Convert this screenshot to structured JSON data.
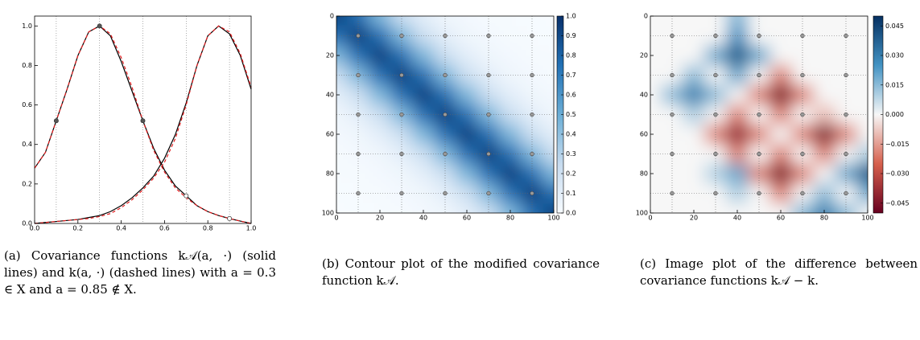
{
  "chart_data": [
    {
      "type": "line",
      "caption": "(a) Covariance functions k𝒜(a, ·) (solid lines) and k(a, ·) (dashed lines) with a = 0.3 ∈ X and a = 0.85 ∉ X.",
      "x": [
        0,
        0.05,
        0.1,
        0.15,
        0.2,
        0.25,
        0.3,
        0.35,
        0.4,
        0.45,
        0.5,
        0.55,
        0.6,
        0.65,
        0.7,
        0.75,
        0.8,
        0.85,
        0.9,
        0.95,
        1
      ],
      "series": [
        {
          "color": "#000000",
          "dash": false,
          "values": [
            0.28,
            0.36,
            0.52,
            0.68,
            0.85,
            0.97,
            1.0,
            0.95,
            0.82,
            0.67,
            0.52,
            0.38,
            0.27,
            0.19,
            0.14,
            0.09,
            0.06,
            0.04,
            0.025,
            0.012,
            0.0
          ]
        },
        {
          "color": "#e41a1c",
          "dash": true,
          "values": [
            0.28,
            0.36,
            0.52,
            0.68,
            0.85,
            0.97,
            1.0,
            0.96,
            0.84,
            0.69,
            0.52,
            0.37,
            0.26,
            0.18,
            0.13,
            0.09,
            0.06,
            0.04,
            0.025,
            0.012,
            0.0
          ]
        },
        {
          "color": "#000000",
          "dash": false,
          "values": [
            0.0,
            0.005,
            0.01,
            0.015,
            0.02,
            0.03,
            0.04,
            0.06,
            0.09,
            0.13,
            0.18,
            0.24,
            0.33,
            0.45,
            0.61,
            0.8,
            0.95,
            1.0,
            0.96,
            0.85,
            0.68
          ]
        },
        {
          "color": "#e41a1c",
          "dash": true,
          "values": [
            0.0,
            0.005,
            0.01,
            0.015,
            0.02,
            0.025,
            0.035,
            0.05,
            0.08,
            0.12,
            0.17,
            0.23,
            0.31,
            0.43,
            0.6,
            0.8,
            0.95,
            1.0,
            0.97,
            0.86,
            0.69
          ]
        }
      ],
      "points": {
        "x": [
          0.1,
          0.3,
          0.5,
          0.7,
          0.9
        ],
        "values": [
          0.52,
          1.0,
          0.52,
          0.14,
          0.025
        ],
        "colors": [
          "#555555",
          "#555555",
          "#555555",
          "#ffffff",
          "#ffffff"
        ]
      },
      "xlim": [
        0,
        1
      ],
      "ylim": [
        0,
        1.05
      ],
      "xticks": [
        {
          "value": 0,
          "label": "0.0"
        },
        0.2,
        0.4,
        0.6,
        0.8,
        {
          "value": 1,
          "label": "1.0"
        }
      ],
      "yticks": [
        {
          "value": 0,
          "label": "0.0"
        },
        0.2,
        0.4,
        0.6,
        0.8,
        {
          "value": 1,
          "label": "1.0"
        }
      ],
      "grid": true
    },
    {
      "type": "heatmap",
      "caption": "(b) Contour plot of the modified covariance function k𝒜.",
      "x": [
        0,
        10,
        20,
        30,
        40,
        50,
        60,
        70,
        80,
        90,
        100
      ],
      "y": [
        0,
        10,
        20,
        30,
        40,
        50,
        60,
        70,
        80,
        90,
        100
      ],
      "values": [
        [
          0.95,
          0.75,
          0.45,
          0.22,
          0.1,
          0.04,
          0.02,
          0.01,
          0.01,
          0,
          0
        ],
        [
          0.75,
          0.95,
          0.75,
          0.45,
          0.22,
          0.1,
          0.04,
          0.02,
          0.01,
          0.01,
          0
        ],
        [
          0.45,
          0.75,
          0.95,
          0.75,
          0.45,
          0.22,
          0.1,
          0.04,
          0.02,
          0.01,
          0.01
        ],
        [
          0.22,
          0.45,
          0.75,
          0.95,
          0.75,
          0.45,
          0.22,
          0.1,
          0.04,
          0.02,
          0.01
        ],
        [
          0.1,
          0.22,
          0.45,
          0.75,
          0.95,
          0.75,
          0.45,
          0.22,
          0.1,
          0.04,
          0.02
        ],
        [
          0.04,
          0.1,
          0.22,
          0.45,
          0.75,
          0.95,
          0.75,
          0.45,
          0.22,
          0.1,
          0.04
        ],
        [
          0.02,
          0.04,
          0.1,
          0.22,
          0.45,
          0.75,
          0.95,
          0.75,
          0.45,
          0.22,
          0.1
        ],
        [
          0.01,
          0.02,
          0.04,
          0.1,
          0.22,
          0.45,
          0.75,
          0.95,
          0.75,
          0.45,
          0.22
        ],
        [
          0.01,
          0.01,
          0.02,
          0.04,
          0.1,
          0.22,
          0.45,
          0.75,
          0.95,
          0.75,
          0.45
        ],
        [
          0,
          0.01,
          0.01,
          0.02,
          0.04,
          0.1,
          0.22,
          0.45,
          0.75,
          0.95,
          0.75
        ],
        [
          0,
          0,
          0.01,
          0.01,
          0.02,
          0.04,
          0.1,
          0.22,
          0.45,
          0.75,
          0.95
        ]
      ],
      "clim": [
        0,
        1
      ],
      "colormap": [
        "#f7fbff",
        "#c6dbef",
        "#6baed6",
        "#2171b5",
        "#08306b"
      ],
      "xlim": [
        0,
        100
      ],
      "ylim": [
        100,
        0
      ],
      "xticks": [
        0,
        20,
        40,
        60,
        80,
        100
      ],
      "yticks": [
        0,
        20,
        40,
        60,
        80,
        100
      ],
      "cticks": [
        {
          "value": 0,
          "label": "0.0"
        },
        0.1,
        0.2,
        0.3,
        0.4,
        0.5,
        0.6,
        0.7,
        0.8,
        0.9,
        {
          "value": 1,
          "label": "1.0"
        }
      ],
      "points": {
        "x": [
          10,
          30,
          50,
          70,
          90
        ],
        "y": [
          10,
          30,
          50,
          70,
          90
        ]
      },
      "point_color": "#9a9a9a",
      "grid": true
    },
    {
      "type": "heatmap",
      "caption": "(c) Image plot of the difference between covariance functions k𝒜 − k.",
      "x": [
        0,
        10,
        20,
        30,
        40,
        50,
        60,
        70,
        80,
        90,
        100
      ],
      "y": [
        0,
        10,
        20,
        30,
        40,
        50,
        60,
        70,
        80,
        90,
        100
      ],
      "values": [
        [
          0,
          0,
          0,
          0,
          0.015,
          0,
          0,
          0,
          0,
          0,
          0
        ],
        [
          0,
          0,
          0,
          0,
          0.025,
          0,
          0,
          0,
          0,
          0,
          0
        ],
        [
          0,
          0,
          0,
          0.02,
          0.04,
          0.02,
          0,
          0,
          0,
          0,
          0
        ],
        [
          0,
          0,
          0.015,
          0,
          0.02,
          0,
          -0.02,
          0,
          0,
          0,
          0
        ],
        [
          0,
          0.015,
          0.03,
          0.015,
          0,
          -0.02,
          -0.045,
          -0.02,
          0,
          0,
          0
        ],
        [
          0,
          0,
          0.01,
          0,
          -0.02,
          0,
          -0.02,
          0,
          -0.01,
          0,
          0
        ],
        [
          0,
          0,
          0,
          -0.02,
          -0.04,
          -0.02,
          0,
          -0.02,
          -0.045,
          -0.02,
          0
        ],
        [
          0,
          0,
          0,
          0,
          -0.02,
          0,
          -0.02,
          0,
          -0.02,
          0,
          0.01
        ],
        [
          0,
          0,
          0,
          0.01,
          0.02,
          -0.02,
          -0.045,
          -0.02,
          0,
          0.02,
          0.04
        ],
        [
          0,
          0,
          0,
          0,
          0.01,
          0,
          -0.02,
          0,
          0.015,
          0,
          0.02
        ],
        [
          0,
          0,
          0,
          0,
          0,
          0,
          0,
          0.015,
          0.03,
          0.015,
          0
        ]
      ],
      "clim": [
        -0.05,
        0.05
      ],
      "colormap": [
        "#67001f",
        "#d6604d",
        "#f7f7f7",
        "#4393c3",
        "#053061"
      ],
      "xlim": [
        0,
        100
      ],
      "ylim": [
        100,
        0
      ],
      "xticks": [
        0,
        20,
        40,
        60,
        80,
        100
      ],
      "yticks": [
        0,
        20,
        40,
        60,
        80,
        100
      ],
      "cticks": [
        0.045,
        {
          "value": 0.03,
          "label": "0.030"
        },
        0.015,
        {
          "value": 0,
          "label": "0.000"
        },
        {
          "value": -0.015,
          "label": "−0.015"
        },
        {
          "value": -0.03,
          "label": "−0.030"
        },
        {
          "value": -0.045,
          "label": "−0.045"
        }
      ],
      "points": {
        "x": [
          10,
          30,
          50,
          70,
          90
        ],
        "y": [
          10,
          30,
          50,
          70,
          90
        ]
      },
      "point_color": "#9a9a9a",
      "grid": true
    }
  ]
}
